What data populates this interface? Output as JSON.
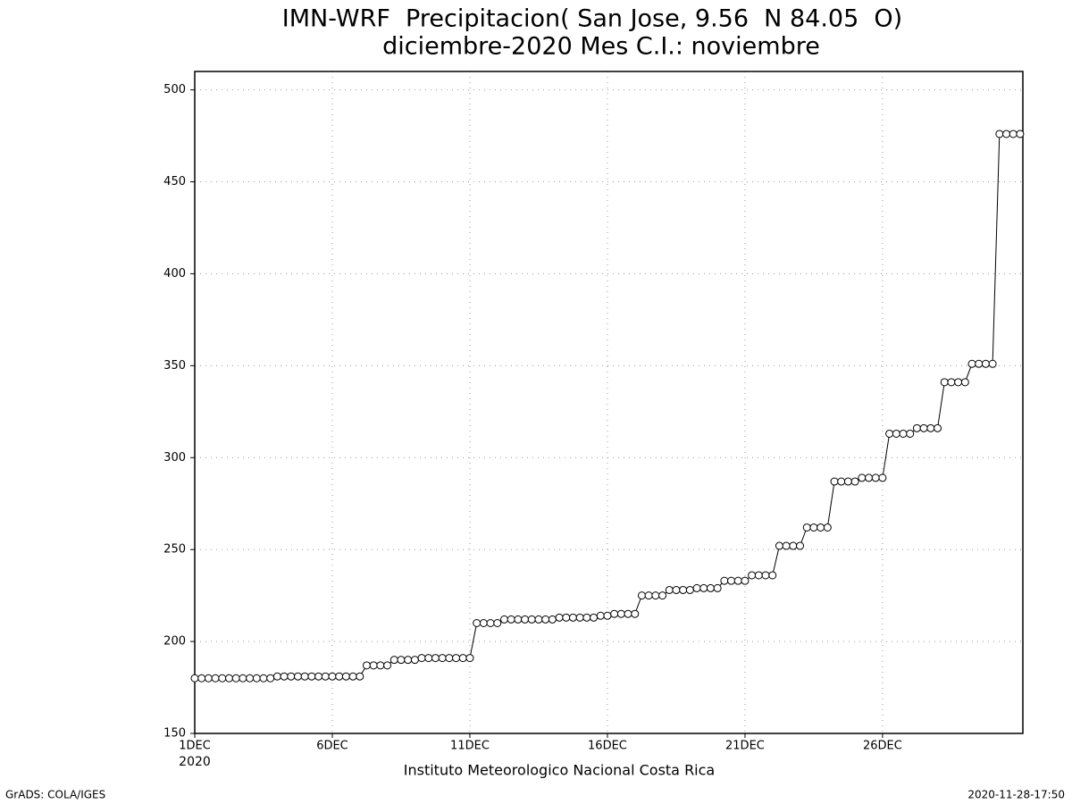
{
  "chart_data": {
    "type": "line",
    "title": "IMN-WRF  Precipitacion( San Jose, 9.56  N 84.05  O)",
    "subtitle": "diciembre-2020 Mes C.I.: noviembre",
    "x_label": "Instituto Meteorologico Nacional Costa Rica",
    "x_sublabel": "2020",
    "footer_left": "GrADS: COLA/IGES",
    "footer_right": "2020-11-28-17:50",
    "x": [
      1,
      1.25,
      1.5,
      1.75,
      2,
      2.25,
      2.5,
      2.75,
      3,
      3.25,
      3.5,
      3.75,
      4,
      4.25,
      4.5,
      4.75,
      5,
      5.25,
      5.5,
      5.75,
      6,
      6.25,
      6.5,
      6.75,
      7,
      7.25,
      7.5,
      7.75,
      8,
      8.25,
      8.5,
      8.75,
      9,
      9.25,
      9.5,
      9.75,
      10,
      10.25,
      10.5,
      10.75,
      11,
      11.25,
      11.5,
      11.75,
      12,
      12.25,
      12.5,
      12.75,
      13,
      13.25,
      13.5,
      13.75,
      14,
      14.25,
      14.5,
      14.75,
      15,
      15.25,
      15.5,
      15.75,
      16,
      16.25,
      16.5,
      16.75,
      17,
      17.25,
      17.5,
      17.75,
      18,
      18.25,
      18.5,
      18.75,
      19,
      19.25,
      19.5,
      19.75,
      20,
      20.25,
      20.5,
      20.75,
      21,
      21.25,
      21.5,
      21.75,
      22,
      22.25,
      22.5,
      22.75,
      23,
      23.25,
      23.5,
      23.75,
      24,
      24.25,
      24.5,
      24.75,
      25,
      25.25,
      25.5,
      25.75,
      26,
      26.25,
      26.5,
      26.75,
      27,
      27.25,
      27.5,
      27.75,
      28,
      28.25,
      28.5,
      28.75,
      29,
      29.25,
      29.5,
      29.75,
      30,
      30.25,
      30.5,
      30.75,
      31
    ],
    "series": [
      {
        "color": "#000000",
        "values": [
          180,
          180,
          180,
          180,
          180,
          180,
          180,
          180,
          180,
          180,
          180,
          180,
          181,
          181,
          181,
          181,
          181,
          181,
          181,
          181,
          181,
          181,
          181,
          181,
          181,
          187,
          187,
          187,
          187,
          190,
          190,
          190,
          190,
          191,
          191,
          191,
          191,
          191,
          191,
          191,
          191,
          210,
          210,
          210,
          210,
          212,
          212,
          212,
          212,
          212,
          212,
          212,
          212,
          213,
          213,
          213,
          213,
          213,
          213,
          214,
          214,
          215,
          215,
          215,
          215,
          225,
          225,
          225,
          225,
          228,
          228,
          228,
          228,
          229,
          229,
          229,
          229,
          233,
          233,
          233,
          233,
          236,
          236,
          236,
          236,
          252,
          252,
          252,
          252,
          262,
          262,
          262,
          262,
          287,
          287,
          287,
          287,
          289,
          289,
          289,
          289,
          313,
          313,
          313,
          313,
          316,
          316,
          316,
          316,
          341,
          341,
          341,
          341,
          351,
          351,
          351,
          351,
          476,
          476,
          476,
          476
        ]
      }
    ],
    "xlim": [
      1,
      31.1
    ],
    "xticks": [
      {
        "value": 1,
        "label": "1DEC"
      },
      {
        "value": 6,
        "label": "6DEC"
      },
      {
        "value": 11,
        "label": "11DEC"
      },
      {
        "value": 16,
        "label": "16DEC"
      },
      {
        "value": 21,
        "label": "21DEC"
      },
      {
        "value": 26,
        "label": "26DEC"
      }
    ],
    "ylim": [
      150,
      510
    ],
    "yticks": [
      150,
      200,
      250,
      300,
      350,
      400,
      450,
      500
    ],
    "grid": true
  }
}
